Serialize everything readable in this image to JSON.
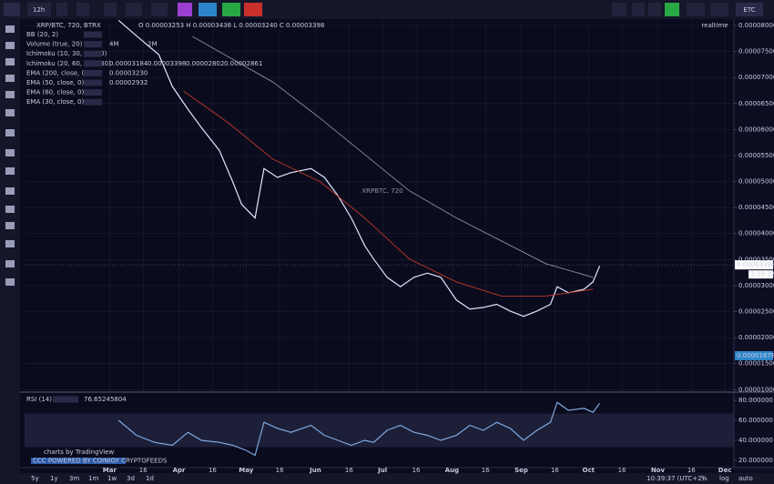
{
  "toolbar": {
    "interval": "12h",
    "symbol": "ETC"
  },
  "chart_data": [
    {
      "type": "line",
      "title": "XRP/BTC, 720, BTRX",
      "ohlc": "O 0.00003253 H 0.00003436 L 0.00003240 C 0.00003398",
      "watermark": "XRPBTC, 720",
      "realtime": "realtime",
      "indicators": [
        {
          "name": "BB (20, 2)"
        },
        {
          "name": "Volume (true, 20)",
          "values": [
            "4M",
            "2M"
          ]
        },
        {
          "name": "Ichimoku (10, 30, 60, 30)"
        },
        {
          "name": "Ichimoku (20, 60, 120, 30)",
          "values": [
            "0.00003184",
            "0.00003398",
            "0.00002802",
            "0.00002861"
          ]
        },
        {
          "name": "EMA (200, close, 0)",
          "values": [
            "0.00003230"
          ]
        },
        {
          "name": "EMA (50, close, 0)",
          "values": [
            "0.00002932"
          ]
        },
        {
          "name": "EMA (60, close, 0)"
        },
        {
          "name": "EMA (30, close, 0)"
        }
      ],
      "last_price": {
        "value": 3.398e-05,
        "label": "0.00003398"
      },
      "countdown": "3:20:22",
      "volume_label": "0.00001678",
      "xlim": [
        22,
        339
      ],
      "ylim": [
        9.7e-06,
        8.105e-05
      ],
      "xticks": [
        {
          "value": 60,
          "label": "Mar"
        },
        {
          "value": 75,
          "label": "16"
        },
        {
          "value": 91,
          "label": "Apr"
        },
        {
          "value": 106,
          "label": "16"
        },
        {
          "value": 121,
          "label": "May"
        },
        {
          "value": 136,
          "label": "16"
        },
        {
          "value": 152,
          "label": "Jun"
        },
        {
          "value": 167,
          "label": "16"
        },
        {
          "value": 182,
          "label": "Jul"
        },
        {
          "value": 197,
          "label": "16"
        },
        {
          "value": 213,
          "label": "Aug"
        },
        {
          "value": 228,
          "label": "16"
        },
        {
          "value": 244,
          "label": "Sep"
        },
        {
          "value": 259,
          "label": "16"
        },
        {
          "value": 274,
          "label": "Oct"
        },
        {
          "value": 289,
          "label": "16"
        },
        {
          "value": 305,
          "label": "Nov"
        },
        {
          "value": 320,
          "label": "16"
        },
        {
          "value": 335,
          "label": "Dec"
        }
      ],
      "yticks": [
        {
          "value": 8e-05,
          "label": "0.00008000"
        },
        {
          "value": 7.5e-05,
          "label": "0.00007500"
        },
        {
          "value": 7e-05,
          "label": "0.00007000"
        },
        {
          "value": 6.5e-05,
          "label": "0.00006500"
        },
        {
          "value": 6e-05,
          "label": "0.00006000"
        },
        {
          "value": 5.5e-05,
          "label": "0.00005500"
        },
        {
          "value": 5e-05,
          "label": "0.00005000"
        },
        {
          "value": 4.5e-05,
          "label": "0.00004500"
        },
        {
          "value": 4e-05,
          "label": "0.00004000"
        },
        {
          "value": 3.5e-05,
          "label": "0.00003500"
        },
        {
          "value": 3e-05,
          "label": "0.00003000"
        },
        {
          "value": 2.5e-05,
          "label": "0.00002500"
        },
        {
          "value": 2e-05,
          "label": "0.00002000"
        },
        {
          "value": 1.5e-05,
          "label": "0.00001500"
        },
        {
          "value": 1e-05,
          "label": "0.00001000"
        }
      ],
      "grid": true,
      "series": [
        {
          "name": "XRP/BTC",
          "color": "#dfe6ff",
          "x": [
            64,
            72,
            82,
            88,
            95,
            101,
            109,
            115,
            119,
            125,
            129,
            135,
            141,
            150,
            156,
            162,
            168,
            174,
            178,
            184,
            190,
            196,
            202,
            208,
            215,
            221,
            227,
            233,
            239,
            245,
            251,
            257,
            260,
            265,
            272,
            276,
            279
          ],
          "values": [
            8.1e-05,
            7.8e-05,
            7.44e-05,
            6.83e-05,
            6.39e-05,
            6.04e-05,
            5.6e-05,
            5e-05,
            4.56e-05,
            4.3e-05,
            5.25e-05,
            5.08e-05,
            5.17e-05,
            5.25e-05,
            5.08e-05,
            4.73e-05,
            4.3e-05,
            3.77e-05,
            3.51e-05,
            3.16e-05,
            2.98e-05,
            3.16e-05,
            3.24e-05,
            3.16e-05,
            2.72e-05,
            2.55e-05,
            2.58e-05,
            2.64e-05,
            2.51e-05,
            2.41e-05,
            2.51e-05,
            2.64e-05,
            2.98e-05,
            2.86e-05,
            2.93e-05,
            3.07e-05,
            3.38e-05
          ]
        },
        {
          "name": "EMA (200, close, 0)",
          "color": "#8a8fa8",
          "x": [
            97,
            133,
            154,
            174,
            194,
            215,
            235,
            255,
            276
          ],
          "values": [
            7.79e-05,
            6.91e-05,
            6.22e-05,
            5.52e-05,
            4.82e-05,
            4.3e-05,
            3.86e-05,
            3.42e-05,
            3.16e-05
          ]
        },
        {
          "name": "EMA (50, close, 0)",
          "color": "#c0392b",
          "x": [
            93,
            113,
            133,
            154,
            174,
            194,
            215,
            235,
            255,
            276
          ],
          "values": [
            6.74e-05,
            6.13e-05,
            5.43e-05,
            5e-05,
            4.3e-05,
            3.51e-05,
            3.07e-05,
            2.8e-05,
            2.8e-05,
            2.93e-05
          ]
        }
      ]
    },
    {
      "type": "line",
      "title": "RSI (14)",
      "last_value": "76.65245804",
      "xlim": [
        22,
        339
      ],
      "ylim": [
        12.7,
        87.3
      ],
      "yticks": [
        {
          "value": 80,
          "label": "80.000000"
        },
        {
          "value": 60,
          "label": "60.000000"
        },
        {
          "value": 40,
          "label": "40.000000"
        },
        {
          "value": 20,
          "label": "20.000000"
        }
      ],
      "series": [
        {
          "name": "RSI (14)",
          "color": "#7fa8e0",
          "x": [
            64,
            72,
            80,
            88,
            95,
            101,
            109,
            115,
            121,
            125,
            129,
            135,
            141,
            150,
            156,
            162,
            168,
            174,
            178,
            184,
            190,
            196,
            202,
            208,
            215,
            221,
            227,
            233,
            239,
            245,
            251,
            257,
            260,
            265,
            272,
            276,
            279
          ],
          "values": [
            60,
            45,
            38,
            35,
            48,
            40,
            38,
            35,
            30,
            25,
            58,
            52,
            48,
            55,
            45,
            40,
            35,
            40,
            38,
            50,
            55,
            48,
            45,
            40,
            45,
            55,
            50,
            58,
            52,
            40,
            50,
            58,
            78,
            70,
            72,
            68,
            77
          ]
        }
      ]
    }
  ],
  "bottom_bar": {
    "ranges": [
      "5y",
      "1y",
      "3m",
      "1m",
      "1w",
      "3d",
      "1d"
    ],
    "clock": "10:39:37 (UTC+2)",
    "percent": "%",
    "log": "log",
    "auto": "auto"
  },
  "branding": {
    "main": "charts by TradingView",
    "sub": "CCC POWERED BY COINIGY CRYPTOFEEDS"
  }
}
